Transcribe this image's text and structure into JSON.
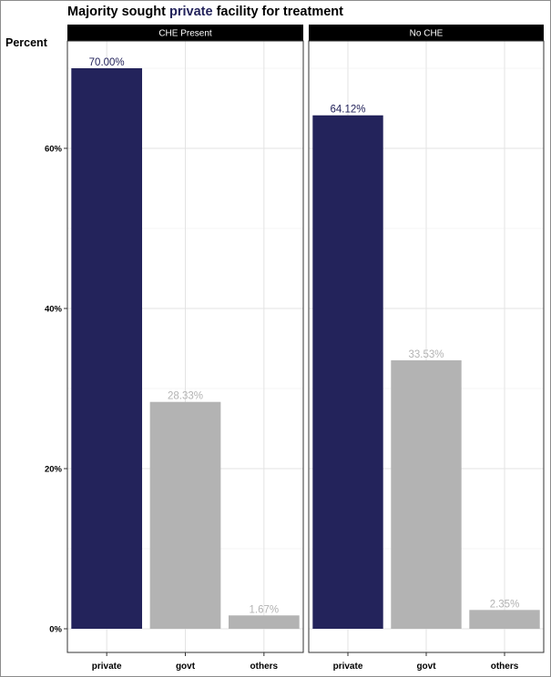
{
  "title": {
    "prefix": "Majority sought ",
    "highlight": "private",
    "suffix": " facility for treatment"
  },
  "colors": {
    "highlight": "#23235b",
    "other": "#b3b3b3",
    "strip_bg": "#000000",
    "strip_text": "#ffffff",
    "grid": "#e3e3e3"
  },
  "chart_data": {
    "type": "bar",
    "ylabel": "Percent",
    "ylim": [
      0,
      75
    ],
    "yticks": [
      0,
      20,
      40,
      60
    ],
    "ytick_labels": [
      "0%",
      "20%",
      "40%",
      "60%"
    ],
    "categories": [
      "private",
      "govt",
      "others"
    ],
    "grid": true,
    "panels": [
      {
        "name": "CHE Present",
        "values": [
          70.0,
          28.33,
          1.67
        ],
        "labels": [
          "70.00%",
          "28.33%",
          "1.67%"
        ]
      },
      {
        "name": "No CHE",
        "values": [
          64.12,
          33.53,
          2.35
        ],
        "labels": [
          "64.12%",
          "33.53%",
          "2.35%"
        ]
      }
    ]
  }
}
